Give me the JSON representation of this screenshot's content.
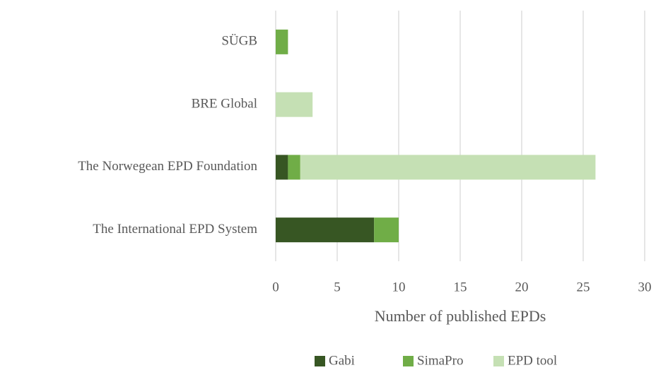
{
  "chart_data": {
    "type": "stacked_barh",
    "x_label": "Number of published EPDs",
    "categories": [
      "SÜGB",
      "BRE Global",
      "The Norwegean EPD Foundation",
      "The International EPD System"
    ],
    "series": [
      {
        "name": "Gabi",
        "color": "#375623",
        "values": [
          0,
          0,
          1,
          8
        ]
      },
      {
        "name": "SimaPro",
        "color": "#70ad47",
        "values": [
          1,
          0,
          1,
          2
        ]
      },
      {
        "name": "EPD tool",
        "color": "#c5e0b4",
        "values": [
          0,
          3,
          24,
          0
        ]
      }
    ],
    "xlim": [
      0,
      30
    ],
    "xticks": [
      0,
      5,
      10,
      15,
      20,
      25,
      30
    ],
    "grid": true,
    "legend": "bottom"
  }
}
